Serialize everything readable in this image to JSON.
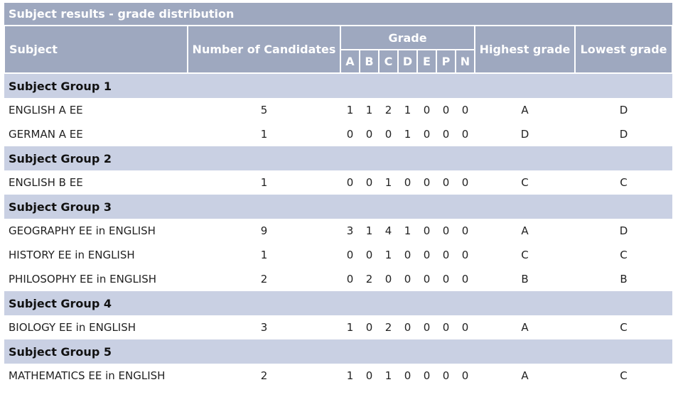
{
  "title": "Subject results - grade distribution",
  "headers": {
    "subject": "Subject",
    "candidates": "Number of Candidates",
    "grade": "Grade",
    "grade_letters": [
      "A",
      "B",
      "C",
      "D",
      "E",
      "P",
      "N"
    ],
    "highest": "Highest grade",
    "lowest": "Lowest grade"
  },
  "groups": [
    {
      "name": "Subject Group 1",
      "rows": [
        {
          "subject": "ENGLISH A EE",
          "candidates": "5",
          "grades": [
            "1",
            "1",
            "2",
            "1",
            "0",
            "0",
            "0"
          ],
          "highest": "A",
          "lowest": "D"
        },
        {
          "subject": "GERMAN A EE",
          "candidates": "1",
          "grades": [
            "0",
            "0",
            "0",
            "1",
            "0",
            "0",
            "0"
          ],
          "highest": "D",
          "lowest": "D"
        }
      ]
    },
    {
      "name": "Subject Group 2",
      "rows": [
        {
          "subject": "ENGLISH B EE",
          "candidates": "1",
          "grades": [
            "0",
            "0",
            "1",
            "0",
            "0",
            "0",
            "0"
          ],
          "highest": "C",
          "lowest": "C"
        }
      ]
    },
    {
      "name": "Subject Group 3",
      "rows": [
        {
          "subject": "GEOGRAPHY EE in ENGLISH",
          "candidates": "9",
          "grades": [
            "3",
            "1",
            "4",
            "1",
            "0",
            "0",
            "0"
          ],
          "highest": "A",
          "lowest": "D"
        },
        {
          "subject": "HISTORY EE in ENGLISH",
          "candidates": "1",
          "grades": [
            "0",
            "0",
            "1",
            "0",
            "0",
            "0",
            "0"
          ],
          "highest": "C",
          "lowest": "C"
        },
        {
          "subject": "PHILOSOPHY EE in ENGLISH",
          "candidates": "2",
          "grades": [
            "0",
            "2",
            "0",
            "0",
            "0",
            "0",
            "0"
          ],
          "highest": "B",
          "lowest": "B"
        }
      ]
    },
    {
      "name": "Subject Group 4",
      "rows": [
        {
          "subject": "BIOLOGY EE in ENGLISH",
          "candidates": "3",
          "grades": [
            "1",
            "0",
            "2",
            "0",
            "0",
            "0",
            "0"
          ],
          "highest": "A",
          "lowest": "C"
        }
      ]
    },
    {
      "name": "Subject Group 5",
      "rows": [
        {
          "subject": "MATHEMATICS EE in ENGLISH",
          "candidates": "2",
          "grades": [
            "1",
            "0",
            "1",
            "0",
            "0",
            "0",
            "0"
          ],
          "highest": "A",
          "lowest": "C"
        }
      ]
    }
  ]
}
